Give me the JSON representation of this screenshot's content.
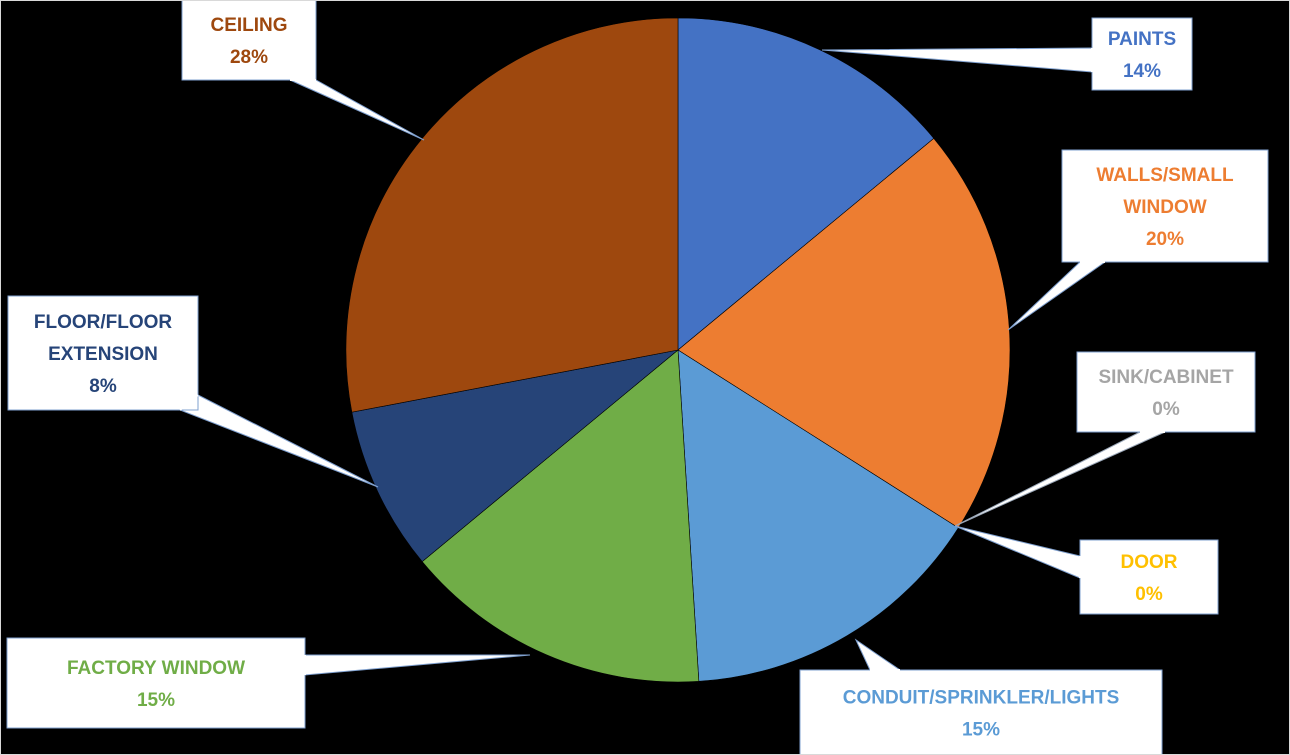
{
  "chart_data": {
    "type": "pie",
    "title": "",
    "slices": [
      {
        "label": "PAINTS",
        "value": 14,
        "value_label": "14%",
        "color": "#4472C4"
      },
      {
        "label": "WALLS/SMALL WINDOW",
        "value": 20,
        "value_label": "20%",
        "color": "#ED7D31"
      },
      {
        "label": "SINK/CABINET",
        "value": 0,
        "value_label": "0%",
        "color": "#A5A5A5"
      },
      {
        "label": "DOOR",
        "value": 0,
        "value_label": "0%",
        "color": "#FFC000"
      },
      {
        "label": "CONDUIT/SPRINKLER/LIGHTS",
        "value": 15,
        "value_label": "15%",
        "color": "#5B9BD5"
      },
      {
        "label": "FACTORY WINDOW",
        "value": 15,
        "value_label": "15%",
        "color": "#70AD47"
      },
      {
        "label": "FLOOR/FLOOR EXTENSION",
        "value": 8,
        "value_label": "8%",
        "color": "#264478"
      },
      {
        "label": "CEILING",
        "value": 28,
        "value_label": "28%",
        "color": "#9E480E"
      }
    ],
    "start_angle_deg": 0,
    "direction": "clockwise",
    "data_labels": "callouts",
    "legend": "none"
  }
}
